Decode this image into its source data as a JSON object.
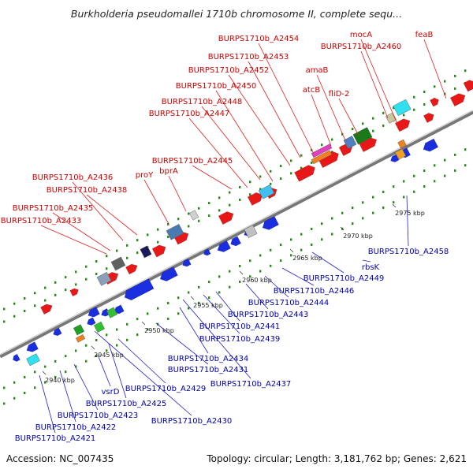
{
  "title": "Burkholderia pseudomallei 1710b chromosome II, complete sequ...",
  "accession": "Accession: NC_007435",
  "summary": "Topology: circular; Length: 3,181,762 bp; Genes: 2,621",
  "colors": {
    "forward_label": "#cc0000",
    "reverse_label": "#0000aa",
    "forward_feature": "#e81818",
    "reverse_feature": "#1a2ee0",
    "tick": "#2a8a1a",
    "backbone": "#777777"
  },
  "kbp_ticks": [
    "2940 kbp",
    "2945 kbp",
    "2950 kbp",
    "2955 kbp",
    "2960 kbp",
    "2965 kbp",
    "2970 kbp",
    "2975 kbp"
  ],
  "forward_labels": [
    "BURPS1710b_A2454",
    "mocA",
    "feaB",
    "BURPS1710b_A2460",
    "BURPS1710b_A2453",
    "amaB",
    "BURPS1710b_A2452",
    "atcB",
    "fliD-2",
    "BURPS1710b_A2450",
    "BURPS1710b_A2448",
    "BURPS1710b_A2447",
    "BURPS1710b_A2445",
    "proY",
    "bprA",
    "BURPS1710b_A2436",
    "BURPS1710b_A2438",
    "BURPS1710b_A2435",
    "BURPS1710b_A2433"
  ],
  "reverse_labels": [
    "BURPS1710b_A2458",
    "rbsK",
    "BURPS1710b_A2449",
    "BURPS1710b_A2446",
    "BURPS1710b_A2444",
    "BURPS1710b_A2443",
    "BURPS1710b_A2441",
    "BURPS1710b_A2439",
    "BURPS1710b_A2434",
    "BURPS1710b_A2431",
    "BURPS1710b_A2437",
    "BURPS1710b_A2429",
    "vsrD",
    "BURPS1710b_A2425",
    "BURPS1710b_A2430",
    "BURPS1710b_A2423",
    "BURPS1710b_A2422",
    "BURPS1710b_A2421"
  ]
}
